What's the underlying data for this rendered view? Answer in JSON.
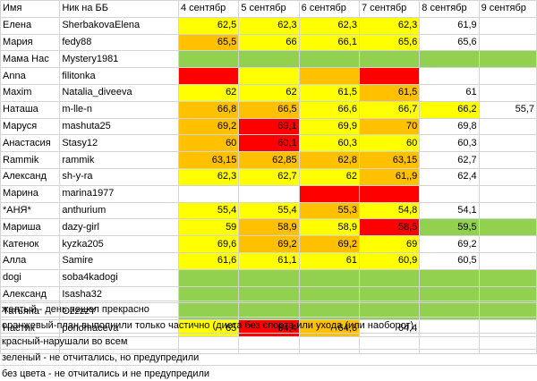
{
  "colors": {
    "y": "#ffff00",
    "o": "#ffc000",
    "r": "#ff0000",
    "g": "#92d050",
    "w": "#ffffff"
  },
  "rows": [
    [
      [
        "Имя",
        "w"
      ],
      [
        "Ник на ББ",
        "w"
      ],
      [
        "4 сентябр",
        "w"
      ],
      [
        "5 сентябр",
        "w"
      ],
      [
        "6 сентябр",
        "w"
      ],
      [
        "7 сентябр",
        "w"
      ],
      [
        "8 сентябр",
        "w"
      ],
      [
        "9 сентябр",
        "w"
      ]
    ],
    [
      [
        "Елена",
        "w"
      ],
      [
        "SherbakovaElena",
        "w"
      ],
      [
        "62,5",
        "y"
      ],
      [
        "62,3",
        "y"
      ],
      [
        "62,3",
        "y"
      ],
      [
        "62,3",
        "y"
      ],
      [
        "61,9",
        "w"
      ],
      [
        "",
        "w"
      ]
    ],
    [
      [
        "Мария",
        "w"
      ],
      [
        "fedy88",
        "w"
      ],
      [
        "65,5",
        "o"
      ],
      [
        "66",
        "y"
      ],
      [
        "66,1",
        "y"
      ],
      [
        "65,6",
        "y"
      ],
      [
        "65,6",
        "w"
      ],
      [
        "",
        "w"
      ]
    ],
    [
      [
        "Мама Нас",
        "w"
      ],
      [
        "Mystery1981",
        "w"
      ],
      [
        "",
        "g"
      ],
      [
        "",
        "g"
      ],
      [
        "",
        "g"
      ],
      [
        "",
        "g"
      ],
      [
        "",
        "g"
      ],
      [
        "",
        "g"
      ]
    ],
    [
      [
        "Anna",
        "w"
      ],
      [
        "filitonka",
        "w"
      ],
      [
        "",
        "r"
      ],
      [
        "",
        "y"
      ],
      [
        "",
        "o"
      ],
      [
        "",
        "r"
      ],
      [
        "",
        "w"
      ],
      [
        "",
        "w"
      ]
    ],
    [
      [
        "Maxim",
        "w"
      ],
      [
        "Natalia_diveeva",
        "w"
      ],
      [
        "62",
        "y"
      ],
      [
        "62",
        "y"
      ],
      [
        "61,5",
        "y"
      ],
      [
        "61,5",
        "o"
      ],
      [
        "61",
        "w"
      ],
      [
        "",
        "w"
      ]
    ],
    [
      [
        "Наташа",
        "w"
      ],
      [
        "m-lle-n",
        "w"
      ],
      [
        "66,8",
        "o"
      ],
      [
        "66,5",
        "o"
      ],
      [
        "66,6",
        "y"
      ],
      [
        "66,7",
        "y"
      ],
      [
        "66,2",
        "y"
      ],
      [
        "55,7",
        "w"
      ]
    ],
    [
      [
        "Маруся",
        "w"
      ],
      [
        "mashuta25",
        "w"
      ],
      [
        "69,2",
        "o"
      ],
      [
        "69,1",
        "r"
      ],
      [
        "69,9",
        "y"
      ],
      [
        "70",
        "o"
      ],
      [
        "69,8",
        "w"
      ],
      [
        "",
        "w"
      ]
    ],
    [
      [
        "Анастасия",
        "w"
      ],
      [
        "Stasy12",
        "w"
      ],
      [
        "60",
        "o"
      ],
      [
        "60,1",
        "r"
      ],
      [
        "60,3",
        "y"
      ],
      [
        "60",
        "y"
      ],
      [
        "60,3",
        "w"
      ],
      [
        "",
        "w"
      ]
    ],
    [
      [
        "Rammik",
        "w"
      ],
      [
        "rammik",
        "w"
      ],
      [
        "63,15",
        "o"
      ],
      [
        "62,85",
        "o"
      ],
      [
        "62,8",
        "o"
      ],
      [
        "63,15",
        "o"
      ],
      [
        "62,7",
        "w"
      ],
      [
        "",
        "w"
      ]
    ],
    [
      [
        "Александ",
        "w"
      ],
      [
        "sh-y-ra",
        "w"
      ],
      [
        "62,3",
        "y"
      ],
      [
        "62,7",
        "y"
      ],
      [
        "62",
        "y"
      ],
      [
        "61,,9",
        "o"
      ],
      [
        "62,4",
        "w"
      ],
      [
        "",
        "w"
      ]
    ],
    [
      [
        "Марина",
        "w"
      ],
      [
        "marina1977",
        "w"
      ],
      [
        "",
        "w"
      ],
      [
        "",
        "w"
      ],
      [
        "",
        "r"
      ],
      [
        "",
        "r"
      ],
      [
        "",
        "w"
      ],
      [
        "",
        "w"
      ]
    ],
    [
      [
        "*АНЯ*",
        "w"
      ],
      [
        "anthurium",
        "w"
      ],
      [
        "55,4",
        "y"
      ],
      [
        "55,4",
        "y"
      ],
      [
        "55,3",
        "o"
      ],
      [
        "54,8",
        "y"
      ],
      [
        "54,1",
        "w"
      ],
      [
        "",
        "w"
      ]
    ],
    [
      [
        "Мариша",
        "w"
      ],
      [
        "dazy-girl",
        "w"
      ],
      [
        "59",
        "y"
      ],
      [
        "58,9",
        "o"
      ],
      [
        "58,9",
        "y"
      ],
      [
        "58,5",
        "r"
      ],
      [
        "59,5",
        "g"
      ],
      [
        "",
        "g"
      ]
    ],
    [
      [
        "Катенок",
        "w"
      ],
      [
        "kyzka205",
        "w"
      ],
      [
        "69,6",
        "y"
      ],
      [
        "69,2",
        "o"
      ],
      [
        "69,2",
        "o"
      ],
      [
        "69",
        "y"
      ],
      [
        "69,2",
        "w"
      ],
      [
        "",
        "w"
      ]
    ],
    [
      [
        "Алла",
        "w"
      ],
      [
        "Samire",
        "w"
      ],
      [
        "61,6",
        "y"
      ],
      [
        "61,1",
        "y"
      ],
      [
        "61",
        "y"
      ],
      [
        "60,9",
        "y"
      ],
      [
        "60,5",
        "w"
      ],
      [
        "",
        "w"
      ]
    ],
    [
      [
        "dogi",
        "w"
      ],
      [
        "soba4kadogi",
        "w"
      ],
      [
        "",
        "g"
      ],
      [
        "",
        "g"
      ],
      [
        "",
        "g"
      ],
      [
        "",
        "g"
      ],
      [
        "",
        "g"
      ],
      [
        "",
        "g"
      ]
    ],
    [
      [
        "Александ",
        "w"
      ],
      [
        "Isasha32",
        "w"
      ],
      [
        "",
        "g"
      ],
      [
        "",
        "g"
      ],
      [
        "",
        "g"
      ],
      [
        "",
        "g"
      ],
      [
        "",
        "g"
      ],
      [
        "",
        "g"
      ]
    ],
    [
      [
        "Татьяна",
        "w"
      ],
      [
        "OzzzzY",
        "w"
      ],
      [
        "",
        "g"
      ],
      [
        "",
        "g"
      ],
      [
        "",
        "g"
      ],
      [
        "",
        "g"
      ],
      [
        "",
        "g"
      ],
      [
        "",
        "g"
      ]
    ],
    [
      [
        "Настик",
        "w"
      ],
      [
        "ponomaceva",
        "w"
      ],
      [
        "65",
        "y"
      ],
      [
        "64,4",
        "r"
      ],
      [
        "64,6",
        "o"
      ],
      [
        "64,4",
        "w"
      ],
      [
        "",
        "w"
      ],
      [
        "",
        "w"
      ]
    ],
    [
      [
        "",
        "w"
      ],
      [
        "",
        "w"
      ],
      [
        "",
        "w"
      ],
      [
        "",
        "w"
      ],
      [
        "",
        "w"
      ],
      [
        "",
        "w"
      ],
      [
        "",
        "w"
      ],
      [
        "",
        "w"
      ]
    ]
  ],
  "legend": [
    "желтый - день пошел прекрасно",
    "оранжевый-план выполнили только частично (диета без спорта или ухода (или наоборот)",
    "красный-нарушали во всем",
    "зеленый - не отчитались, но предупредили",
    "без цвета - не отчитались и не предупредили"
  ]
}
